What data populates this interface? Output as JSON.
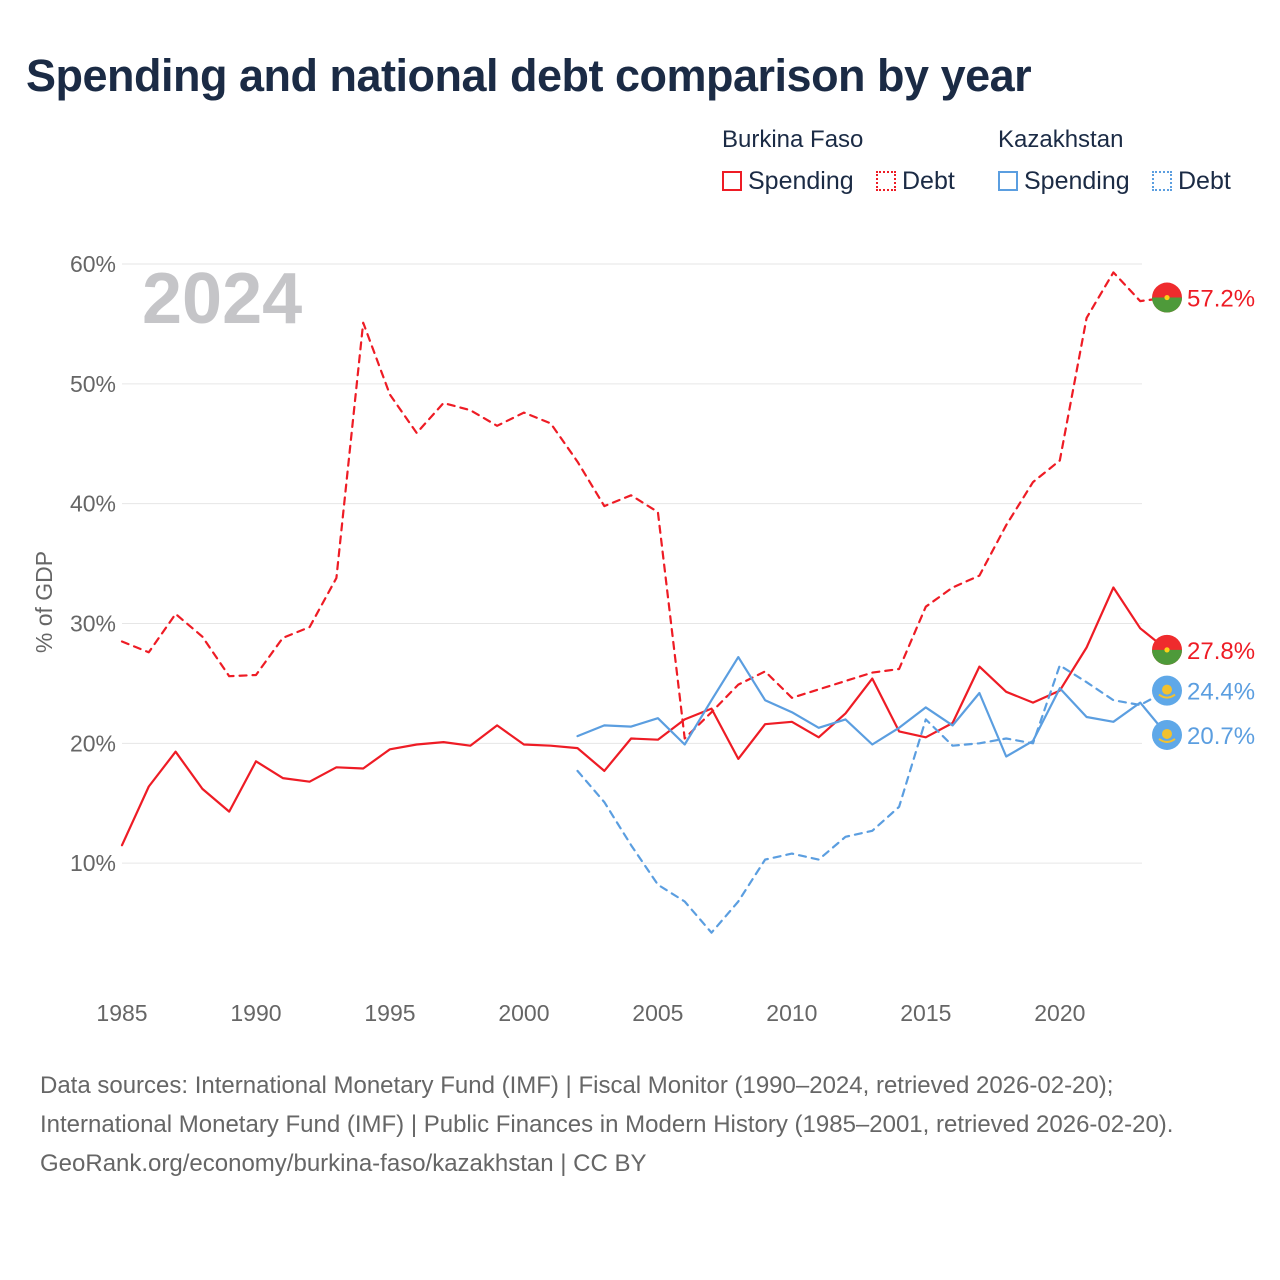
{
  "title": "Spending and national debt comparison by year",
  "legend": {
    "groups": [
      {
        "country": "Burkina Faso",
        "color": "#ee1c25",
        "items": [
          {
            "label": "Spending",
            "style": "solid"
          },
          {
            "label": "Debt",
            "style": "dotted"
          }
        ]
      },
      {
        "country": "Kazakhstan",
        "color": "#5b9ee0",
        "items": [
          {
            "label": "Spending",
            "style": "solid"
          },
          {
            "label": "Debt",
            "style": "dotted"
          }
        ]
      }
    ]
  },
  "year_label": "2024",
  "source": {
    "line1": "Data sources: International Monetary Fund (IMF) | Fiscal Monitor (1990–2024, retrieved 2026-02-20); International Monetary Fund (IMF) | Public Finances in Modern History (1985–2001, retrieved 2026-02-20).",
    "line2": "GeoRank.org/economy/burkina-faso/kazakhstan | CC BY"
  },
  "chart_data": {
    "type": "line",
    "title": "Spending and national debt comparison by year",
    "xlabel": "",
    "ylabel": "% of GDP",
    "xlim": [
      1985,
      2024
    ],
    "ylim": [
      0,
      60
    ],
    "x_ticks": [
      1985,
      1990,
      1995,
      2000,
      2005,
      2010,
      2015,
      2020
    ],
    "y_ticks": [
      10,
      20,
      30,
      40,
      50,
      60
    ],
    "y_tick_labels": [
      "10%",
      "20%",
      "30%",
      "40%",
      "50%",
      "60%"
    ],
    "grid": true,
    "series": [
      {
        "name": "Burkina Faso Debt",
        "country": "Burkina Faso",
        "kind": "debt",
        "color": "#ee1c25",
        "dashed": true,
        "start": 1985,
        "values": [
          28.5,
          27.6,
          30.8,
          28.9,
          25.6,
          25.7,
          28.8,
          29.7,
          33.8,
          55.1,
          49.1,
          45.9,
          48.4,
          47.8,
          46.5,
          47.6,
          46.7,
          43.5,
          39.8,
          40.7,
          39.3,
          20.4,
          22.6,
          24.9,
          26.0,
          23.8,
          24.5,
          25.2,
          25.9,
          26.2,
          31.4,
          33.0,
          34.0,
          38.2,
          41.8,
          43.6,
          55.5,
          59.3,
          56.9,
          57.2
        ],
        "end_label": "57.2%"
      },
      {
        "name": "Burkina Faso Spending",
        "country": "Burkina Faso",
        "kind": "spending",
        "color": "#ee1c25",
        "dashed": false,
        "start": 1985,
        "values": [
          11.5,
          16.4,
          19.3,
          16.2,
          14.3,
          18.5,
          17.1,
          16.8,
          18.0,
          17.9,
          19.5,
          19.9,
          20.1,
          19.8,
          21.5,
          19.9,
          19.8,
          19.6,
          17.7,
          20.4,
          20.3,
          22.0,
          22.9,
          18.7,
          21.6,
          21.8,
          20.5,
          22.5,
          25.4,
          21.0,
          20.5,
          21.7,
          26.4,
          24.3,
          23.4,
          24.4,
          28.0,
          33.0,
          29.6,
          27.8
        ],
        "end_label": "27.8%"
      },
      {
        "name": "Kazakhstan Debt",
        "country": "Kazakhstan",
        "kind": "debt",
        "color": "#5b9ee0",
        "dashed": true,
        "start": 2002,
        "values": [
          17.7,
          15.1,
          11.5,
          8.2,
          6.8,
          4.2,
          6.8,
          10.3,
          10.8,
          10.3,
          12.2,
          12.7,
          14.7,
          22.0,
          19.8,
          20.0,
          20.4,
          20.0,
          26.5,
          25.1,
          23.6,
          23.2,
          24.4
        ],
        "end_label": "24.4%"
      },
      {
        "name": "Kazakhstan Spending",
        "country": "Kazakhstan",
        "kind": "spending",
        "color": "#5b9ee0",
        "dashed": false,
        "start": 2002,
        "values": [
          20.6,
          21.5,
          21.4,
          22.1,
          19.9,
          23.6,
          27.2,
          23.6,
          22.6,
          21.3,
          22.0,
          19.9,
          21.3,
          23.0,
          21.5,
          24.2,
          18.9,
          20.2,
          24.6,
          22.2,
          21.8,
          23.4,
          20.7
        ],
        "end_label": "20.7%"
      }
    ]
  }
}
